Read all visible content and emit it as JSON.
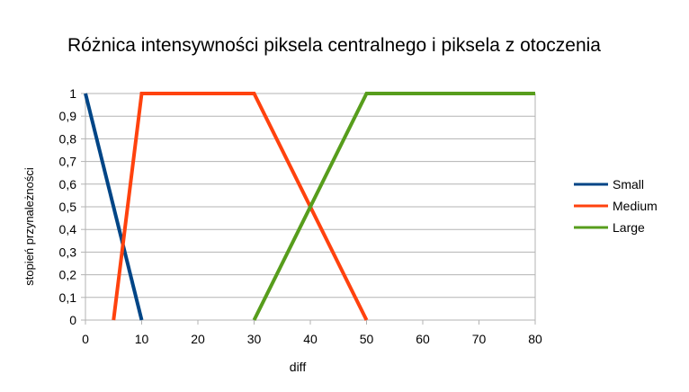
{
  "chart_data": {
    "type": "line",
    "title": "Różnica intensywności piksela centralnego i piksela z otoczenia",
    "xlabel": "diff",
    "ylabel": "stopień przynależności",
    "x_categories": [
      "0",
      "10",
      "20",
      "30",
      "40",
      "50",
      "60",
      "70",
      "80"
    ],
    "y_ticks": [
      "0",
      "0,1",
      "0,2",
      "0,3",
      "0,4",
      "0,5",
      "0,6",
      "0,7",
      "0,8",
      "0,9",
      "1"
    ],
    "ylim": [
      0,
      1
    ],
    "grid": "horizontal",
    "legend_position": "right",
    "series": [
      {
        "name": "Small",
        "color": "#004586",
        "points": [
          [
            0,
            1
          ],
          [
            1,
            0
          ]
        ]
      },
      {
        "name": "Medium",
        "color": "#ff420e",
        "points": [
          [
            0.5,
            0
          ],
          [
            1,
            1
          ],
          [
            3,
            1
          ],
          [
            5,
            0
          ]
        ]
      },
      {
        "name": "Large",
        "color": "#579d1c",
        "points": [
          [
            3,
            0
          ],
          [
            5,
            1
          ],
          [
            8,
            1
          ]
        ]
      }
    ]
  }
}
